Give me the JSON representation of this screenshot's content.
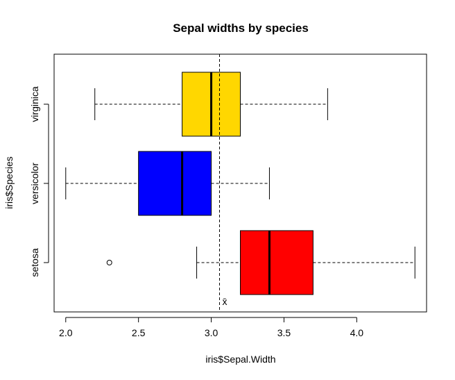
{
  "chart_data": {
    "type": "boxplot",
    "orientation": "horizontal",
    "title": "Sepal widths by species",
    "xlabel": "iris$Sepal.Width",
    "ylabel": "iris$Species",
    "xlim": [
      1.92,
      4.48
    ],
    "x_ticks": [
      "2.0",
      "2.5",
      "3.0",
      "3.5",
      "4.0"
    ],
    "x_tick_values": [
      2.0,
      2.5,
      3.0,
      3.5,
      4.0
    ],
    "grid": false,
    "categories": [
      "setosa",
      "versicolor",
      "virginica"
    ],
    "boxes": [
      {
        "category": "setosa",
        "color": "#ff0000",
        "whisker_low": 2.9,
        "q1": 3.2,
        "median": 3.4,
        "q3": 3.7,
        "whisker_high": 4.4,
        "outliers": [
          2.3
        ]
      },
      {
        "category": "versicolor",
        "color": "#0000ff",
        "whisker_low": 2.0,
        "q1": 2.5,
        "median": 2.8,
        "q3": 3.0,
        "whisker_high": 3.4,
        "outliers": []
      },
      {
        "category": "virginica",
        "color": "#ffd700",
        "whisker_low": 2.2,
        "q1": 2.8,
        "median": 3.0,
        "q3": 3.2,
        "whisker_high": 3.8,
        "outliers": []
      }
    ],
    "mean_line": {
      "value": 3.057,
      "label": "x̄"
    }
  }
}
